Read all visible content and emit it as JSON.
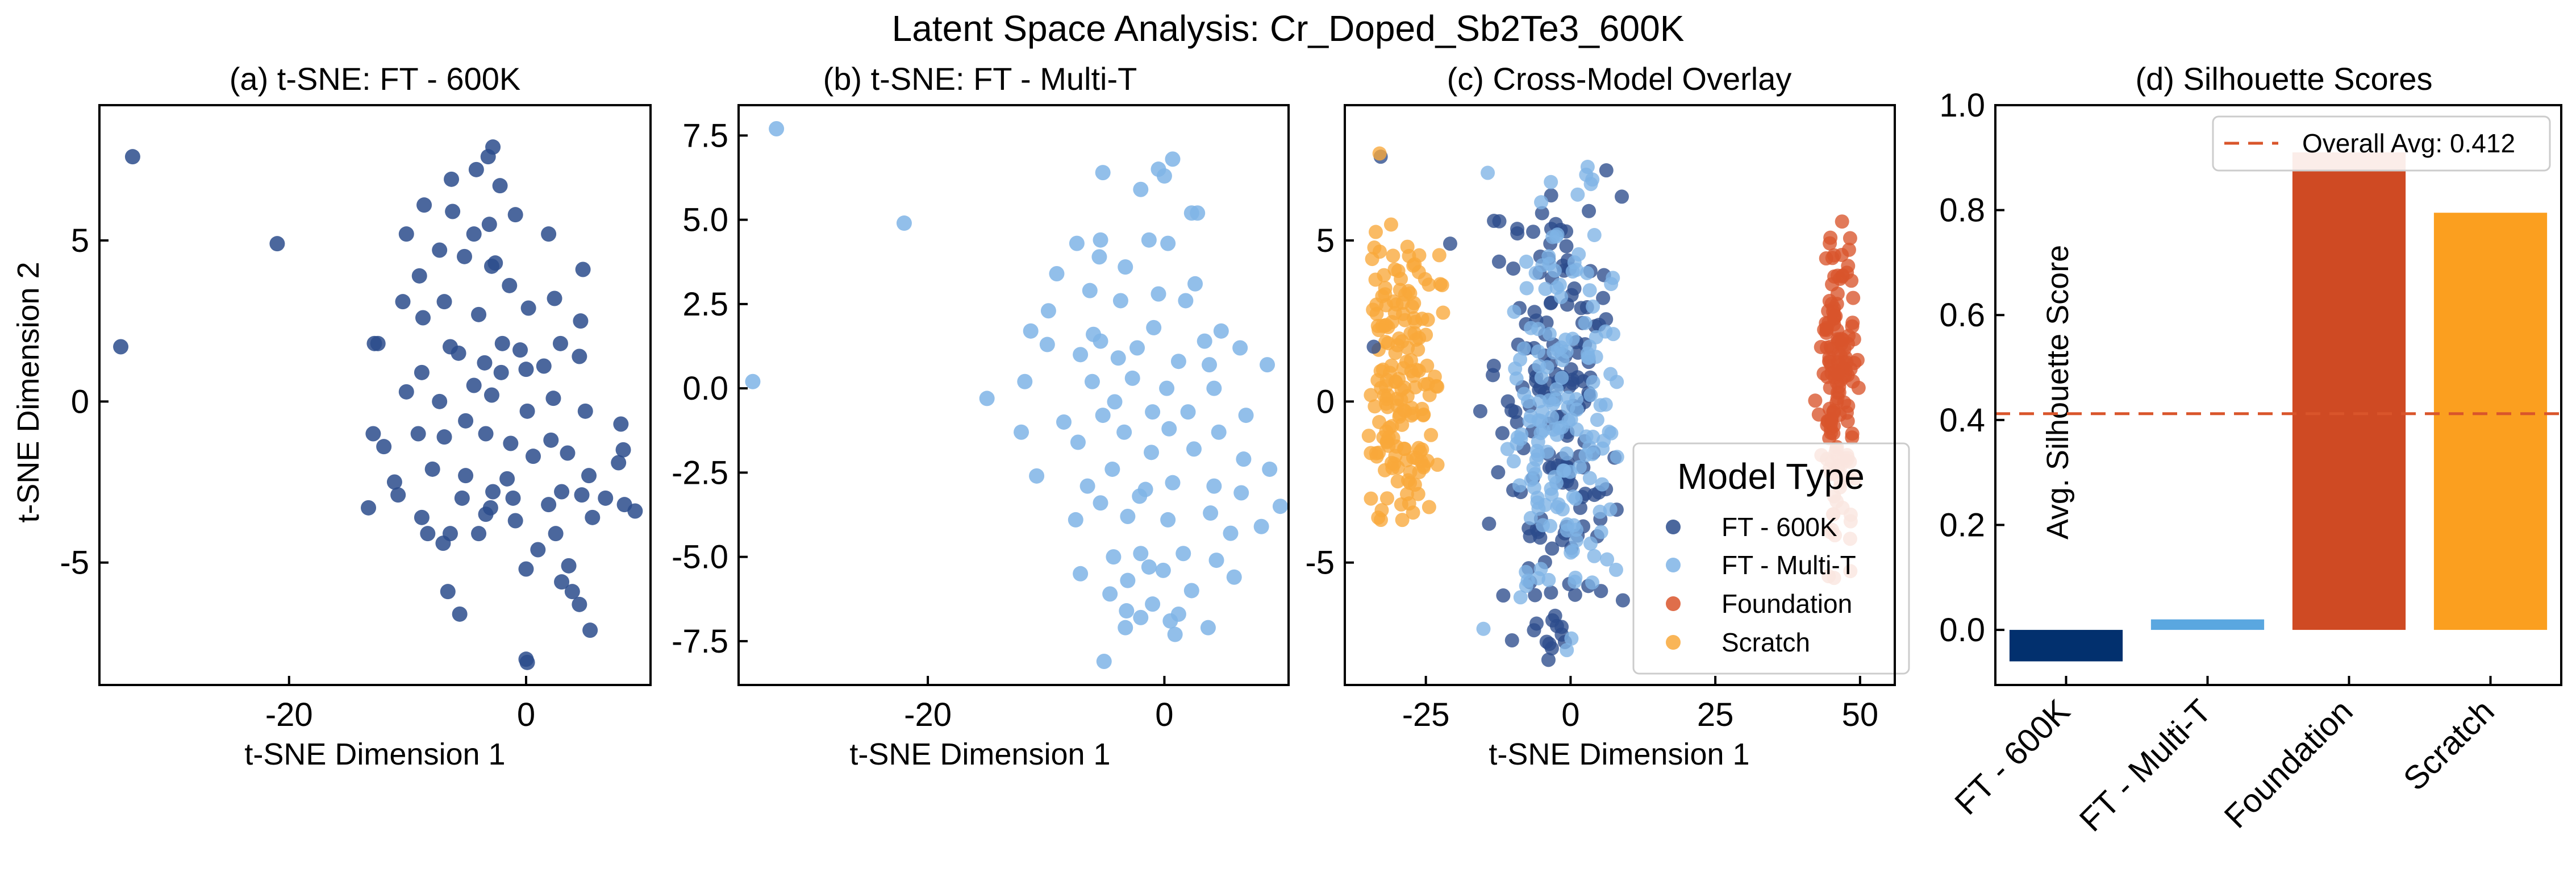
{
  "figure": {
    "suptitle": "Latent Space Analysis: Cr_Doped_Sb2Te3_600K"
  },
  "colors": {
    "ft600k": "#2b4c8c",
    "ftmulti": "#7fb4e6",
    "foundation": "#d9552b",
    "scratch": "#f8a83a",
    "bar_ft600k": "#02306e",
    "bar_ftmulti": "#5aa7e0",
    "bar_foundation": "#cf4a23",
    "bar_scratch": "#fb9f1f",
    "avg_line": "#d9552b"
  },
  "chart_data": [
    {
      "type": "scatter",
      "title": "(a) t-SNE: FT - 600K",
      "xlabel": "t-SNE Dimension 1",
      "ylabel": "t-SNE Dimension 2",
      "xlim": [
        -36,
        10.5
      ],
      "ylim": [
        -8.8,
        9.2
      ],
      "xticks": [
        -20,
        0
      ],
      "xtick_labels": [
        "-20",
        "0"
      ],
      "yticks": [
        -5,
        0,
        5
      ],
      "ytick_labels": [
        "-5",
        "0",
        "5"
      ],
      "series": [
        {
          "color_key": "ft600k",
          "points": [
            [
              -33.2,
              7.6
            ],
            [
              -21.0,
              4.9
            ],
            [
              -34.2,
              1.7
            ],
            [
              -3.2,
              7.6
            ],
            [
              -2.8,
              7.9
            ],
            [
              -4.2,
              7.2
            ],
            [
              -6.3,
              6.9
            ],
            [
              -2.2,
              6.7
            ],
            [
              -8.6,
              6.1
            ],
            [
              -6.2,
              5.9
            ],
            [
              -0.9,
              5.8
            ],
            [
              -3.1,
              5.5
            ],
            [
              -10.1,
              5.2
            ],
            [
              -4.4,
              5.2
            ],
            [
              1.9,
              5.2
            ],
            [
              -7.3,
              4.7
            ],
            [
              -5.2,
              4.5
            ],
            [
              -2.6,
              4.3
            ],
            [
              -2.9,
              4.2
            ],
            [
              4.8,
              4.1
            ],
            [
              -9.0,
              3.9
            ],
            [
              -1.4,
              3.6
            ],
            [
              -10.4,
              3.1
            ],
            [
              -6.9,
              3.1
            ],
            [
              2.4,
              3.2
            ],
            [
              0.2,
              2.9
            ],
            [
              -4.0,
              2.7
            ],
            [
              -8.7,
              2.6
            ],
            [
              4.6,
              2.5
            ],
            [
              -12.8,
              1.8
            ],
            [
              -12.5,
              1.8
            ],
            [
              -6.4,
              1.7
            ],
            [
              -2.0,
              1.8
            ],
            [
              2.9,
              1.8
            ],
            [
              -0.5,
              1.6
            ],
            [
              -5.7,
              1.5
            ],
            [
              -3.5,
              1.2
            ],
            [
              0.0,
              1.0
            ],
            [
              1.5,
              1.1
            ],
            [
              -2.1,
              0.9
            ],
            [
              4.5,
              1.4
            ],
            [
              -8.8,
              0.9
            ],
            [
              -4.4,
              0.5
            ],
            [
              -10.1,
              0.3
            ],
            [
              -7.3,
              0.0
            ],
            [
              -2.9,
              0.2
            ],
            [
              0.1,
              -0.3
            ],
            [
              2.3,
              0.1
            ],
            [
              -5.1,
              -0.6
            ],
            [
              5.0,
              -0.3
            ],
            [
              -12.9,
              -1.0
            ],
            [
              -9.1,
              -1.0
            ],
            [
              -6.9,
              -1.1
            ],
            [
              -3.4,
              -1.0
            ],
            [
              -1.3,
              -1.3
            ],
            [
              2.1,
              -1.2
            ],
            [
              -12.0,
              -1.4
            ],
            [
              8.0,
              -0.7
            ],
            [
              0.6,
              -1.7
            ],
            [
              3.5,
              -1.6
            ],
            [
              8.2,
              -1.5
            ],
            [
              -7.9,
              -2.1
            ],
            [
              -5.1,
              -2.3
            ],
            [
              -1.6,
              -2.4
            ],
            [
              5.3,
              -2.3
            ],
            [
              7.8,
              -1.9
            ],
            [
              -11.1,
              -2.5
            ],
            [
              -2.8,
              -2.8
            ],
            [
              3.0,
              -2.8
            ],
            [
              -10.8,
              -2.9
            ],
            [
              -5.4,
              -3.0
            ],
            [
              -1.1,
              -3.0
            ],
            [
              -13.3,
              -3.3
            ],
            [
              -3.0,
              -3.3
            ],
            [
              -3.4,
              -3.5
            ],
            [
              1.9,
              -3.2
            ],
            [
              4.7,
              -2.9
            ],
            [
              6.7,
              -3.0
            ],
            [
              8.3,
              -3.2
            ],
            [
              9.2,
              -3.4
            ],
            [
              -8.8,
              -3.6
            ],
            [
              -0.9,
              -3.7
            ],
            [
              5.6,
              -3.6
            ],
            [
              -6.4,
              -4.1
            ],
            [
              -8.3,
              -4.1
            ],
            [
              -4.0,
              -4.1
            ],
            [
              2.5,
              -4.1
            ],
            [
              1.0,
              -4.6
            ],
            [
              -7.0,
              -4.4
            ],
            [
              0.0,
              -5.2
            ],
            [
              3.6,
              -5.1
            ],
            [
              -6.6,
              -5.9
            ],
            [
              -5.6,
              -6.6
            ],
            [
              3.9,
              -5.9
            ],
            [
              4.5,
              -6.3
            ],
            [
              0.1,
              -8.1
            ],
            [
              0.0,
              -8.0
            ],
            [
              5.4,
              -7.1
            ],
            [
              3.0,
              -5.6
            ]
          ]
        }
      ]
    },
    {
      "type": "scatter",
      "title": "(b) t-SNE: FT - Multi-T",
      "xlabel": "t-SNE Dimension 1",
      "ylabel": "",
      "xlim": [
        -36,
        10.5
      ],
      "ylim": [
        -8.8,
        8.4
      ],
      "xticks": [
        -20,
        0
      ],
      "xtick_labels": [
        "-20",
        "0"
      ],
      "yticks": [
        -7.5,
        -5.0,
        -2.5,
        0.0,
        2.5,
        5.0,
        7.5
      ],
      "ytick_labels": [
        "-7.5",
        "-5.0",
        "-2.5",
        "0.0",
        "2.5",
        "5.0",
        "7.5"
      ],
      "series": [
        {
          "color_key": "ftmulti",
          "points": [
            [
              -32.8,
              7.7
            ],
            [
              -22.0,
              4.9
            ],
            [
              -34.8,
              0.2
            ],
            [
              -15.0,
              -0.3
            ],
            [
              0.7,
              6.8
            ],
            [
              -5.2,
              6.4
            ],
            [
              -0.5,
              6.5
            ],
            [
              0.0,
              6.3
            ],
            [
              -2.0,
              5.9
            ],
            [
              2.3,
              5.2
            ],
            [
              2.8,
              5.2
            ],
            [
              -5.4,
              4.4
            ],
            [
              -7.4,
              4.3
            ],
            [
              -1.3,
              4.4
            ],
            [
              0.3,
              4.3
            ],
            [
              -5.5,
              3.9
            ],
            [
              -3.3,
              3.6
            ],
            [
              -9.1,
              3.4
            ],
            [
              2.6,
              3.1
            ],
            [
              -6.3,
              2.9
            ],
            [
              -0.5,
              2.8
            ],
            [
              -3.7,
              2.6
            ],
            [
              -9.8,
              2.3
            ],
            [
              1.8,
              2.6
            ],
            [
              -11.3,
              1.7
            ],
            [
              -6.0,
              1.6
            ],
            [
              -0.9,
              1.8
            ],
            [
              4.8,
              1.7
            ],
            [
              3.4,
              1.4
            ],
            [
              -9.9,
              1.3
            ],
            [
              -5.4,
              1.4
            ],
            [
              -2.3,
              1.2
            ],
            [
              -7.1,
              1.0
            ],
            [
              6.4,
              1.2
            ],
            [
              -3.9,
              0.9
            ],
            [
              1.2,
              0.8
            ],
            [
              3.8,
              0.7
            ],
            [
              -11.8,
              0.2
            ],
            [
              8.7,
              0.7
            ],
            [
              -6.1,
              0.2
            ],
            [
              -2.7,
              0.3
            ],
            [
              0.2,
              0.0
            ],
            [
              4.2,
              0.0
            ],
            [
              -4.2,
              -0.4
            ],
            [
              -1.0,
              -0.7
            ],
            [
              2.0,
              -0.7
            ],
            [
              -8.5,
              -1.0
            ],
            [
              -5.2,
              -0.8
            ],
            [
              6.9,
              -0.8
            ],
            [
              -12.1,
              -1.3
            ],
            [
              -3.4,
              -1.3
            ],
            [
              0.4,
              -1.2
            ],
            [
              4.6,
              -1.3
            ],
            [
              -7.3,
              -1.6
            ],
            [
              -1.1,
              -1.9
            ],
            [
              2.5,
              -1.8
            ],
            [
              6.7,
              -2.1
            ],
            [
              -10.8,
              -2.6
            ],
            [
              -4.4,
              -2.4
            ],
            [
              8.9,
              -2.4
            ],
            [
              -6.5,
              -2.9
            ],
            [
              -1.6,
              -3.0
            ],
            [
              0.7,
              -2.8
            ],
            [
              4.2,
              -2.9
            ],
            [
              6.5,
              -3.1
            ],
            [
              -5.4,
              -3.4
            ],
            [
              -2.1,
              -3.2
            ],
            [
              9.8,
              -3.5
            ],
            [
              -7.5,
              -3.9
            ],
            [
              -3.1,
              -3.8
            ],
            [
              0.3,
              -3.9
            ],
            [
              3.9,
              -3.7
            ],
            [
              8.2,
              -4.1
            ],
            [
              -2.0,
              -4.9
            ],
            [
              -4.3,
              -5.0
            ],
            [
              1.6,
              -4.9
            ],
            [
              -1.3,
              -5.3
            ],
            [
              4.4,
              -5.1
            ],
            [
              -7.1,
              -5.5
            ],
            [
              -3.1,
              -5.7
            ],
            [
              -0.1,
              -5.4
            ],
            [
              5.9,
              -5.6
            ],
            [
              -4.6,
              -6.1
            ],
            [
              2.3,
              -6.0
            ],
            [
              -3.2,
              -6.6
            ],
            [
              -2.0,
              -6.8
            ],
            [
              0.5,
              -6.9
            ],
            [
              1.2,
              -6.7
            ],
            [
              -3.3,
              -7.1
            ],
            [
              0.9,
              -7.3
            ],
            [
              3.7,
              -7.1
            ],
            [
              -5.1,
              -8.1
            ],
            [
              -1.0,
              -6.4
            ],
            [
              5.6,
              -4.3
            ]
          ]
        }
      ]
    },
    {
      "type": "scatter",
      "title": "(c) Cross-Model Overlay",
      "xlabel": "t-SNE Dimension 1",
      "ylabel": "",
      "xlim": [
        -39,
        56
      ],
      "ylim": [
        -8.8,
        9.2
      ],
      "xticks": [
        -25,
        0,
        25,
        50
      ],
      "xtick_labels": [
        "-25",
        "0",
        "25",
        "50"
      ],
      "yticks": [
        -5,
        0,
        5
      ],
      "ytick_labels": [
        "-5",
        "0",
        "5"
      ],
      "legend": {
        "title": "Model Type",
        "position": "lower-right",
        "entries": [
          "FT - 600K",
          "FT - Multi-T",
          "Foundation",
          "Scratch"
        ]
      },
      "series": [
        {
          "name": "Scratch",
          "color_key": "scratch",
          "generated": {
            "seed": 11,
            "n": 170,
            "cx": -29.5,
            "cy": 0.6,
            "sx": 3.2,
            "sy": 2.6,
            "xmin": -35,
            "xmax": -22,
            "ymin": -4,
            "ymax": 5.6
          }
        },
        {
          "name": "Foundation",
          "color_key": "foundation",
          "generated": {
            "seed": 29,
            "n": 150,
            "cx": 46.2,
            "cy": 0.8,
            "sx": 1.6,
            "sy": 2.6,
            "xmin": 41,
            "xmax": 50,
            "ymin": -5.5,
            "ymax": 5.6
          }
        },
        {
          "name": "FT - 600K",
          "color_key": "ft600k",
          "generated": {
            "seed": 53,
            "n": 170,
            "cx": -2.5,
            "cy": -0.4,
            "sx": 5.0,
            "sy": 3.8,
            "xmin": -15,
            "xmax": 10,
            "ymin": -8.1,
            "ymax": 7.9
          }
        },
        {
          "name": "FT - Multi-T",
          "color_key": "ftmulti",
          "generated": {
            "seed": 77,
            "n": 170,
            "cx": -1.5,
            "cy": -0.2,
            "sx": 5.2,
            "sy": 3.8,
            "xmin": -16,
            "xmax": 10,
            "ymin": -8.1,
            "ymax": 7.5
          }
        },
        {
          "name": "FT - 600K",
          "color_key": "ft600k",
          "points": [
            [
              -32.8,
              7.6
            ],
            [
              -20.8,
              4.9
            ],
            [
              -34.0,
              1.7
            ],
            [
              -15.6,
              -0.3
            ]
          ]
        },
        {
          "name": "Scratch",
          "color_key": "scratch",
          "points": [
            [
              -33.0,
              7.7
            ],
            [
              -34.5,
              0.2
            ]
          ]
        }
      ]
    },
    {
      "type": "bar",
      "title": "(d) Silhouette Scores",
      "xlabel": "",
      "ylabel": "Avg. Silhouette Score",
      "categories": [
        "FT - 600K",
        "FT - Multi-T",
        "Foundation",
        "Scratch"
      ],
      "values": [
        -0.06,
        0.02,
        0.91,
        0.795
      ],
      "color_keys": [
        "bar_ft600k",
        "bar_ftmulti",
        "bar_foundation",
        "bar_scratch"
      ],
      "ylim": [
        -0.105,
        1.0
      ],
      "yticks": [
        0.0,
        0.2,
        0.4,
        0.6,
        0.8,
        1.0
      ],
      "ytick_labels": [
        "0.0",
        "0.2",
        "0.4",
        "0.6",
        "0.8",
        "1.0"
      ],
      "reference_line": {
        "label": "Overall Avg: 0.412",
        "value": 0.412
      },
      "legend": {
        "position": "top-right",
        "entries": [
          "Overall Avg: 0.412"
        ]
      }
    }
  ]
}
